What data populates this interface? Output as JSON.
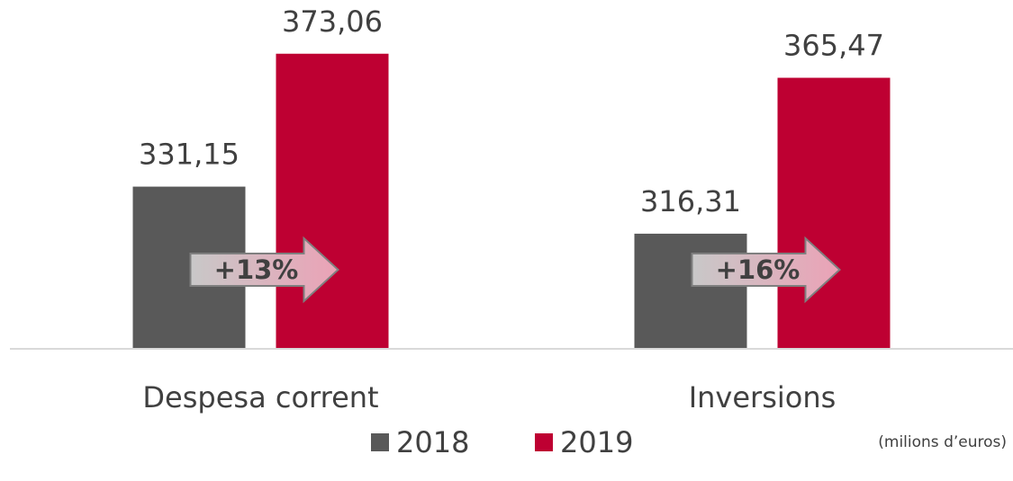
{
  "chart_data": {
    "type": "bar",
    "categories": [
      "Despesa corrent",
      "Inversions"
    ],
    "series": [
      {
        "name": "2018",
        "color": "#595959",
        "values": [
          331.15,
          316.31
        ],
        "value_labels": [
          "331,15",
          "316,31"
        ]
      },
      {
        "name": "2019",
        "color": "#be0032",
        "values": [
          373.06,
          365.47
        ],
        "value_labels": [
          "373,06",
          "365,47"
        ]
      }
    ],
    "ylim": [
      280,
      390
    ],
    "annotations": [
      "+13%",
      "+16%"
    ],
    "note": "(milions d’euros)"
  }
}
